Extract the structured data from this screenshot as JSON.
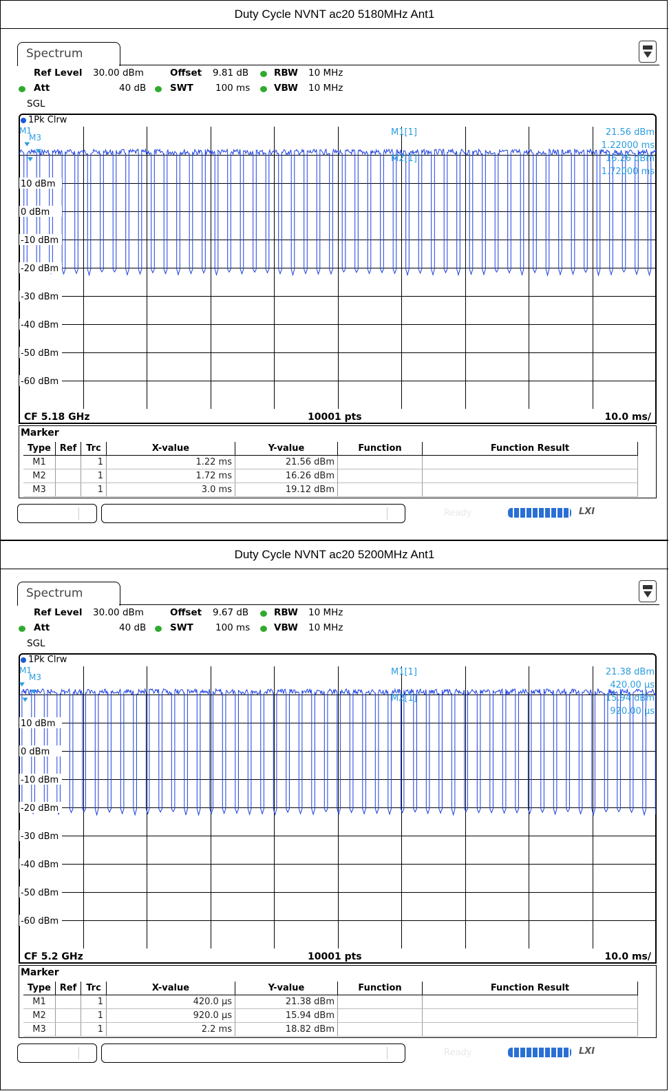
{
  "blocks": [
    {
      "header": "Duty Cycle NVNT ac20 5180MHz Ant1",
      "tab": "Spectrum",
      "settings": {
        "ref_level_label": "Ref Level",
        "ref_level": "30.00 dBm",
        "offset_label": "Offset",
        "offset": "9.81 dB",
        "rbw_label": "RBW",
        "rbw": "10 MHz",
        "att_label": "Att",
        "att": "40 dB",
        "swt_label": "SWT",
        "swt": "100 ms",
        "vbw_label": "VBW",
        "vbw": "10 MHz",
        "sgl": "SGL",
        "trace": "1Pk Clrw"
      },
      "marker_readout": {
        "m1_label": "M1[1]",
        "m1_level": "21.56 dBm",
        "m1_time": "1.22000 ms",
        "m2_label": "M2[1]",
        "m2_level": "16.26 dBm",
        "m2_time": "1.72000 ms"
      },
      "markers_on_plot": [
        "M1",
        "M3"
      ],
      "footer": {
        "cf": "CF 5.18 GHz",
        "pts": "10001 pts",
        "div": "10.0 ms/"
      },
      "marker_table": {
        "title": "Marker",
        "headers": [
          "Type",
          "Ref",
          "Trc",
          "X-value",
          "Y-value",
          "Function",
          "Function Result"
        ],
        "rows": [
          [
            "M1",
            "",
            "1",
            "1.22 ms",
            "21.56 dBm",
            "",
            ""
          ],
          [
            "M2",
            "",
            "1",
            "1.72 ms",
            "16.26 dBm",
            "",
            ""
          ],
          [
            "M3",
            "",
            "1",
            "3.0 ms",
            "19.12 dBm",
            "",
            ""
          ]
        ]
      },
      "status": {
        "ready": "Ready",
        "lxi": "LXI"
      },
      "chart_data": {
        "type": "line",
        "y_tick_labels": [
          "10 dBm",
          "0 dBm",
          "-10 dBm",
          "-20 dBm",
          "-30 dBm",
          "-40 dBm",
          "-50 dBm",
          "-60 dBm"
        ],
        "ylim": [
          -70,
          30
        ],
        "xlim_ms": [
          0,
          100
        ],
        "series": [
          {
            "period_ms": 2.0,
            "on_ms": 1.5,
            "first_on_ms": 1.22,
            "high_dbm": 21.0,
            "low_dbm": -20.0
          }
        ],
        "markers": [
          {
            "name": "M1",
            "x_ms": 1.22,
            "y_dbm": 21.56
          },
          {
            "name": "M2",
            "x_ms": 1.72,
            "y_dbm": 16.26
          },
          {
            "name": "M3",
            "x_ms": 3.0,
            "y_dbm": 19.12
          }
        ]
      }
    },
    {
      "header": "Duty Cycle NVNT ac20 5200MHz Ant1",
      "tab": "Spectrum",
      "settings": {
        "ref_level_label": "Ref Level",
        "ref_level": "30.00 dBm",
        "offset_label": "Offset",
        "offset": "9.67 dB",
        "rbw_label": "RBW",
        "rbw": "10 MHz",
        "att_label": "Att",
        "att": "40 dB",
        "swt_label": "SWT",
        "swt": "100 ms",
        "vbw_label": "VBW",
        "vbw": "10 MHz",
        "sgl": "SGL",
        "trace": "1Pk Clrw"
      },
      "marker_readout": {
        "m1_label": "M1[1]",
        "m1_level": "21.38 dBm",
        "m1_time": "420.00 µs",
        "m2_label": "M2[1]",
        "m2_level": "15.94 dBm",
        "m2_time": "920.00 µs"
      },
      "markers_on_plot": [
        "M1",
        "M3"
      ],
      "footer": {
        "cf": "CF 5.2 GHz",
        "pts": "10001 pts",
        "div": "10.0 ms/"
      },
      "marker_table": {
        "title": "Marker",
        "headers": [
          "Type",
          "Ref",
          "Trc",
          "X-value",
          "Y-value",
          "Function",
          "Function Result"
        ],
        "rows": [
          [
            "M1",
            "",
            "1",
            "420.0 µs",
            "21.38 dBm",
            "",
            ""
          ],
          [
            "M2",
            "",
            "1",
            "920.0 µs",
            "15.94 dBm",
            "",
            ""
          ],
          [
            "M3",
            "",
            "1",
            "2.2 ms",
            "18.82 dBm",
            "",
            ""
          ]
        ]
      },
      "status": {
        "ready": "Ready",
        "lxi": "LXI"
      },
      "chart_data": {
        "type": "line",
        "y_tick_labels": [
          "10 dBm",
          "0 dBm",
          "-10 dBm",
          "-20 dBm",
          "-30 dBm",
          "-40 dBm",
          "-50 dBm",
          "-60 dBm"
        ],
        "ylim": [
          -70,
          30
        ],
        "xlim_ms": [
          0,
          100
        ],
        "series": [
          {
            "period_ms": 2.0,
            "on_ms": 1.5,
            "first_on_ms": 0.42,
            "high_dbm": 21.0,
            "low_dbm": -20.0
          }
        ],
        "markers": [
          {
            "name": "M1",
            "x_ms": 0.42,
            "y_dbm": 21.38
          },
          {
            "name": "M2",
            "x_ms": 0.92,
            "y_dbm": 15.94
          },
          {
            "name": "M3",
            "x_ms": 2.2,
            "y_dbm": 18.82
          }
        ]
      }
    }
  ]
}
